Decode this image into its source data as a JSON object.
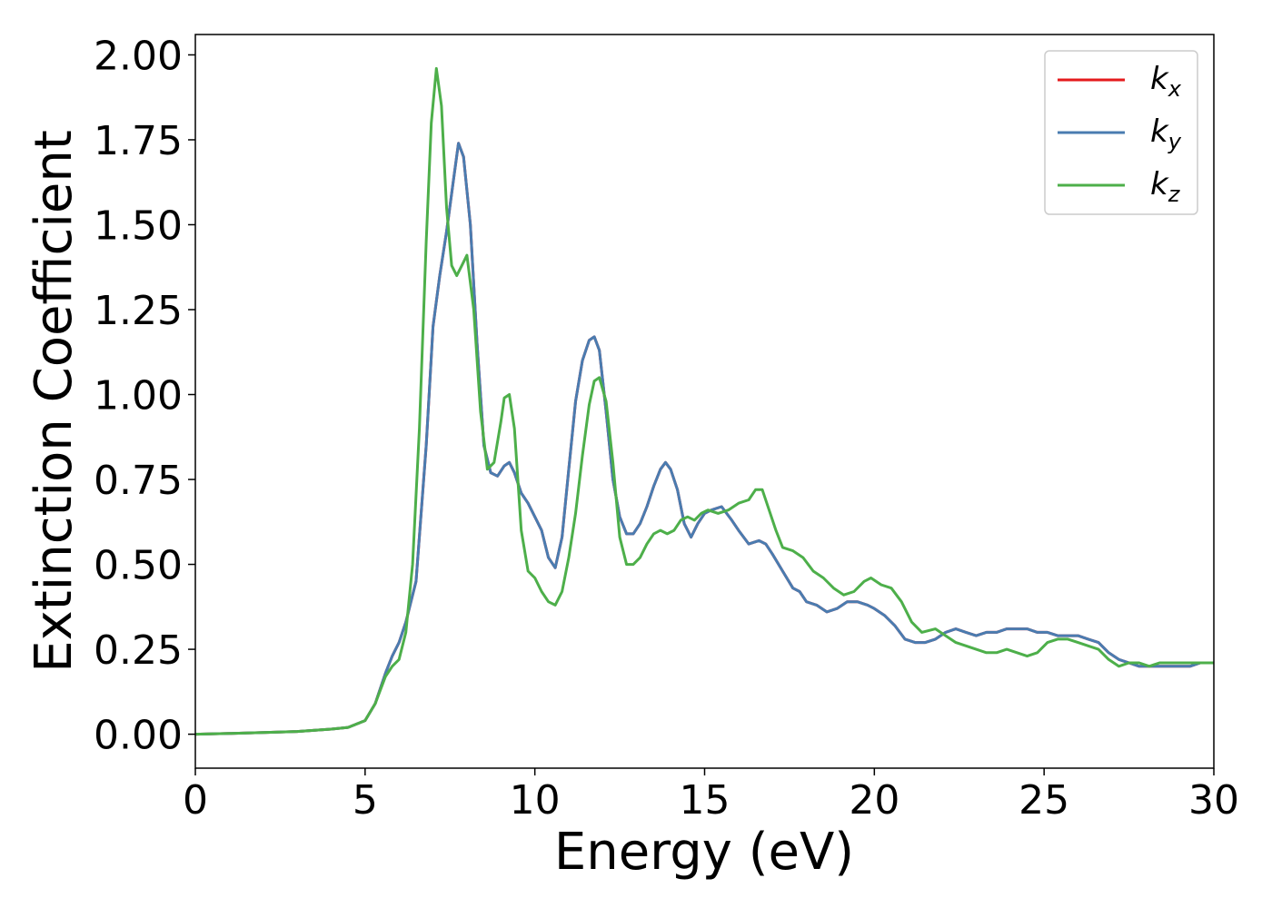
{
  "chart_data": {
    "type": "line",
    "title": "",
    "xlabel": "Energy (eV)",
    "ylabel": "Extinction Coefficient",
    "xlim": [
      0,
      30
    ],
    "ylim": [
      -0.1,
      2.06
    ],
    "xticks": [
      "0",
      "5",
      "10",
      "15",
      "20",
      "25",
      "30"
    ],
    "yticks": [
      "0.00",
      "0.25",
      "0.50",
      "0.75",
      "1.00",
      "1.25",
      "1.50",
      "1.75",
      "2.00"
    ],
    "grid": false,
    "legend": {
      "position": "top-right",
      "entries": [
        {
          "base": "k",
          "sub": "x"
        },
        {
          "base": "k",
          "sub": "y"
        },
        {
          "base": "k",
          "sub": "z"
        }
      ]
    },
    "series": [
      {
        "name": "k_x",
        "color": "#e41a1c",
        "x": [
          0,
          1,
          2,
          3,
          4,
          4.5,
          5,
          5.3,
          5.6,
          5.8,
          6.0,
          6.2,
          6.5,
          6.8,
          7.0,
          7.2,
          7.4,
          7.6,
          7.75,
          7.9,
          8.1,
          8.3,
          8.5,
          8.7,
          8.9,
          9.1,
          9.25,
          9.4,
          9.6,
          9.8,
          10.0,
          10.2,
          10.4,
          10.6,
          10.8,
          11.0,
          11.2,
          11.4,
          11.6,
          11.75,
          11.9,
          12.1,
          12.3,
          12.5,
          12.7,
          12.9,
          13.1,
          13.3,
          13.5,
          13.7,
          13.85,
          14.0,
          14.2,
          14.4,
          14.6,
          14.8,
          15.0,
          15.2,
          15.5,
          15.8,
          16.0,
          16.3,
          16.6,
          16.8,
          17.0,
          17.3,
          17.6,
          17.8,
          18.0,
          18.3,
          18.6,
          18.9,
          19.2,
          19.5,
          19.8,
          20.0,
          20.3,
          20.6,
          20.9,
          21.2,
          21.5,
          21.8,
          22.1,
          22.4,
          22.7,
          23.0,
          23.3,
          23.6,
          23.9,
          24.2,
          24.5,
          24.8,
          25.1,
          25.4,
          25.7,
          26.0,
          26.3,
          26.6,
          26.9,
          27.2,
          27.5,
          27.8,
          28.1,
          28.4,
          28.7,
          29.0,
          29.3,
          29.6,
          30.0
        ],
        "y": [
          0.0,
          0.002,
          0.005,
          0.008,
          0.015,
          0.02,
          0.04,
          0.09,
          0.18,
          0.23,
          0.27,
          0.33,
          0.45,
          0.85,
          1.2,
          1.35,
          1.48,
          1.63,
          1.74,
          1.7,
          1.5,
          1.15,
          0.85,
          0.77,
          0.76,
          0.79,
          0.8,
          0.77,
          0.71,
          0.68,
          0.64,
          0.6,
          0.52,
          0.49,
          0.58,
          0.78,
          0.98,
          1.1,
          1.16,
          1.17,
          1.13,
          0.95,
          0.75,
          0.64,
          0.59,
          0.59,
          0.62,
          0.67,
          0.73,
          0.78,
          0.8,
          0.78,
          0.72,
          0.62,
          0.58,
          0.62,
          0.65,
          0.66,
          0.67,
          0.63,
          0.6,
          0.56,
          0.57,
          0.56,
          0.53,
          0.48,
          0.43,
          0.42,
          0.39,
          0.38,
          0.36,
          0.37,
          0.39,
          0.39,
          0.38,
          0.37,
          0.35,
          0.32,
          0.28,
          0.27,
          0.27,
          0.28,
          0.3,
          0.31,
          0.3,
          0.29,
          0.3,
          0.3,
          0.31,
          0.31,
          0.31,
          0.3,
          0.3,
          0.29,
          0.29,
          0.29,
          0.28,
          0.27,
          0.24,
          0.22,
          0.21,
          0.2,
          0.2,
          0.2,
          0.2,
          0.2,
          0.2,
          0.21,
          0.21
        ]
      },
      {
        "name": "k_y",
        "color": "#4a7cb0",
        "x": [
          0,
          1,
          2,
          3,
          4,
          4.5,
          5,
          5.3,
          5.6,
          5.8,
          6.0,
          6.2,
          6.5,
          6.8,
          7.0,
          7.2,
          7.4,
          7.6,
          7.75,
          7.9,
          8.1,
          8.3,
          8.5,
          8.7,
          8.9,
          9.1,
          9.25,
          9.4,
          9.6,
          9.8,
          10.0,
          10.2,
          10.4,
          10.6,
          10.8,
          11.0,
          11.2,
          11.4,
          11.6,
          11.75,
          11.9,
          12.1,
          12.3,
          12.5,
          12.7,
          12.9,
          13.1,
          13.3,
          13.5,
          13.7,
          13.85,
          14.0,
          14.2,
          14.4,
          14.6,
          14.8,
          15.0,
          15.2,
          15.5,
          15.8,
          16.0,
          16.3,
          16.6,
          16.8,
          17.0,
          17.3,
          17.6,
          17.8,
          18.0,
          18.3,
          18.6,
          18.9,
          19.2,
          19.5,
          19.8,
          20.0,
          20.3,
          20.6,
          20.9,
          21.2,
          21.5,
          21.8,
          22.1,
          22.4,
          22.7,
          23.0,
          23.3,
          23.6,
          23.9,
          24.2,
          24.5,
          24.8,
          25.1,
          25.4,
          25.7,
          26.0,
          26.3,
          26.6,
          26.9,
          27.2,
          27.5,
          27.8,
          28.1,
          28.4,
          28.7,
          29.0,
          29.3,
          29.6,
          30.0
        ],
        "y": [
          0.0,
          0.002,
          0.005,
          0.008,
          0.015,
          0.02,
          0.04,
          0.09,
          0.18,
          0.23,
          0.27,
          0.33,
          0.45,
          0.85,
          1.2,
          1.35,
          1.48,
          1.63,
          1.74,
          1.7,
          1.5,
          1.15,
          0.85,
          0.77,
          0.76,
          0.79,
          0.8,
          0.77,
          0.71,
          0.68,
          0.64,
          0.6,
          0.52,
          0.49,
          0.58,
          0.78,
          0.98,
          1.1,
          1.16,
          1.17,
          1.13,
          0.95,
          0.75,
          0.64,
          0.59,
          0.59,
          0.62,
          0.67,
          0.73,
          0.78,
          0.8,
          0.78,
          0.72,
          0.62,
          0.58,
          0.62,
          0.65,
          0.66,
          0.67,
          0.63,
          0.6,
          0.56,
          0.57,
          0.56,
          0.53,
          0.48,
          0.43,
          0.42,
          0.39,
          0.38,
          0.36,
          0.37,
          0.39,
          0.39,
          0.38,
          0.37,
          0.35,
          0.32,
          0.28,
          0.27,
          0.27,
          0.28,
          0.3,
          0.31,
          0.3,
          0.29,
          0.3,
          0.3,
          0.31,
          0.31,
          0.31,
          0.3,
          0.3,
          0.29,
          0.29,
          0.29,
          0.28,
          0.27,
          0.24,
          0.22,
          0.21,
          0.2,
          0.2,
          0.2,
          0.2,
          0.2,
          0.2,
          0.21,
          0.21
        ]
      },
      {
        "name": "k_z",
        "color": "#4daf4a",
        "x": [
          0,
          1,
          2,
          3,
          4,
          4.5,
          5,
          5.3,
          5.6,
          5.8,
          6.0,
          6.2,
          6.4,
          6.6,
          6.8,
          6.95,
          7.1,
          7.25,
          7.4,
          7.55,
          7.7,
          7.85,
          8.0,
          8.2,
          8.4,
          8.6,
          8.8,
          9.0,
          9.1,
          9.25,
          9.4,
          9.6,
          9.8,
          10.0,
          10.2,
          10.4,
          10.6,
          10.8,
          11.0,
          11.2,
          11.4,
          11.6,
          11.75,
          11.9,
          12.1,
          12.3,
          12.5,
          12.7,
          12.9,
          13.1,
          13.3,
          13.5,
          13.7,
          13.9,
          14.1,
          14.3,
          14.5,
          14.7,
          14.9,
          15.1,
          15.4,
          15.7,
          16.0,
          16.3,
          16.5,
          16.7,
          16.9,
          17.1,
          17.3,
          17.6,
          17.9,
          18.2,
          18.5,
          18.8,
          19.1,
          19.4,
          19.7,
          19.9,
          20.2,
          20.5,
          20.8,
          21.1,
          21.4,
          21.8,
          22.1,
          22.4,
          22.7,
          23.0,
          23.3,
          23.6,
          23.9,
          24.2,
          24.5,
          24.8,
          25.1,
          25.4,
          25.7,
          26.0,
          26.3,
          26.6,
          26.9,
          27.2,
          27.5,
          27.8,
          28.1,
          28.4,
          28.7,
          29.0,
          29.3,
          29.6,
          30.0
        ],
        "y": [
          0.0,
          0.002,
          0.005,
          0.008,
          0.015,
          0.02,
          0.04,
          0.09,
          0.17,
          0.2,
          0.22,
          0.3,
          0.5,
          0.9,
          1.45,
          1.8,
          1.96,
          1.85,
          1.55,
          1.38,
          1.35,
          1.38,
          1.41,
          1.25,
          0.95,
          0.78,
          0.8,
          0.92,
          0.99,
          1.0,
          0.9,
          0.6,
          0.48,
          0.46,
          0.42,
          0.39,
          0.38,
          0.42,
          0.52,
          0.65,
          0.82,
          0.97,
          1.04,
          1.05,
          0.98,
          0.8,
          0.58,
          0.5,
          0.5,
          0.52,
          0.56,
          0.59,
          0.6,
          0.59,
          0.6,
          0.63,
          0.64,
          0.63,
          0.65,
          0.66,
          0.65,
          0.66,
          0.68,
          0.69,
          0.72,
          0.72,
          0.66,
          0.6,
          0.55,
          0.54,
          0.52,
          0.48,
          0.46,
          0.43,
          0.41,
          0.42,
          0.45,
          0.46,
          0.44,
          0.43,
          0.39,
          0.33,
          0.3,
          0.31,
          0.29,
          0.27,
          0.26,
          0.25,
          0.24,
          0.24,
          0.25,
          0.24,
          0.23,
          0.24,
          0.27,
          0.28,
          0.28,
          0.27,
          0.26,
          0.25,
          0.22,
          0.2,
          0.21,
          0.21,
          0.2,
          0.21,
          0.21,
          0.21,
          0.21,
          0.21,
          0.21
        ]
      }
    ]
  }
}
